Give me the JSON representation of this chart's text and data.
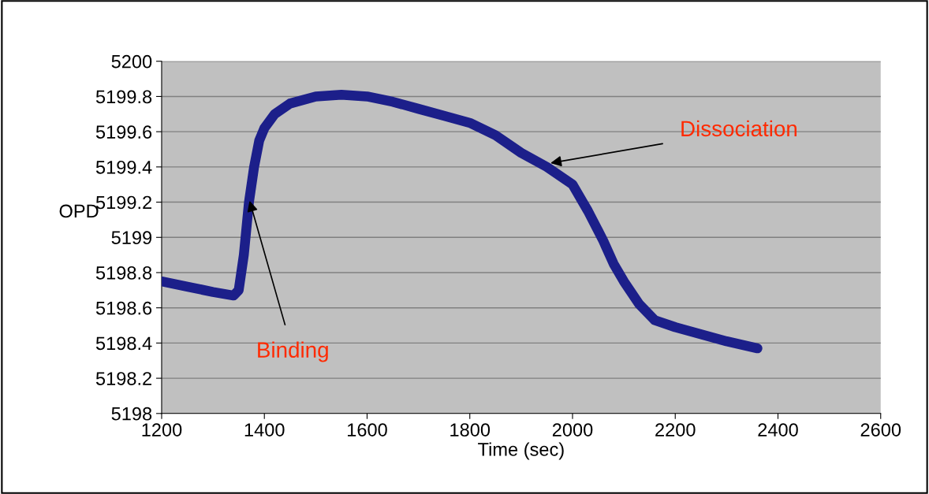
{
  "chart_data": {
    "type": "line",
    "xlabel": "Time (sec)",
    "ylabel": "OPD",
    "x": [
      1200,
      1250,
      1300,
      1340,
      1350,
      1360,
      1370,
      1380,
      1390,
      1400,
      1420,
      1450,
      1500,
      1550,
      1600,
      1650,
      1700,
      1750,
      1800,
      1850,
      1900,
      1950,
      2000,
      2030,
      2060,
      2080,
      2100,
      2130,
      2160,
      2200,
      2250,
      2300,
      2360
    ],
    "series": [
      {
        "color": "#1c1f8a",
        "values": [
          5198.75,
          5198.72,
          5198.69,
          5198.67,
          5198.7,
          5198.9,
          5199.2,
          5199.4,
          5199.55,
          5199.62,
          5199.7,
          5199.76,
          5199.8,
          5199.81,
          5199.8,
          5199.77,
          5199.73,
          5199.69,
          5199.65,
          5199.58,
          5199.48,
          5199.4,
          5199.3,
          5199.15,
          5198.98,
          5198.85,
          5198.75,
          5198.62,
          5198.53,
          5198.49,
          5198.45,
          5198.41,
          5198.37
        ]
      }
    ],
    "xlim": [
      1200,
      2600
    ],
    "xticks": [
      1200,
      1400,
      1600,
      1800,
      2000,
      2200,
      2400,
      2600
    ],
    "ylim": [
      5198,
      5200
    ],
    "yticks": [
      5198,
      5198.2,
      5198.4,
      5198.6,
      5198.8,
      5199,
      5199.2,
      5199.4,
      5199.6,
      5199.8,
      5200
    ],
    "grid": "y",
    "annotations": [
      {
        "text": "Binding",
        "x": 1370,
        "y": 5199.22
      },
      {
        "text": "Dissociation",
        "x": 1953,
        "y": 5199.42
      }
    ]
  }
}
